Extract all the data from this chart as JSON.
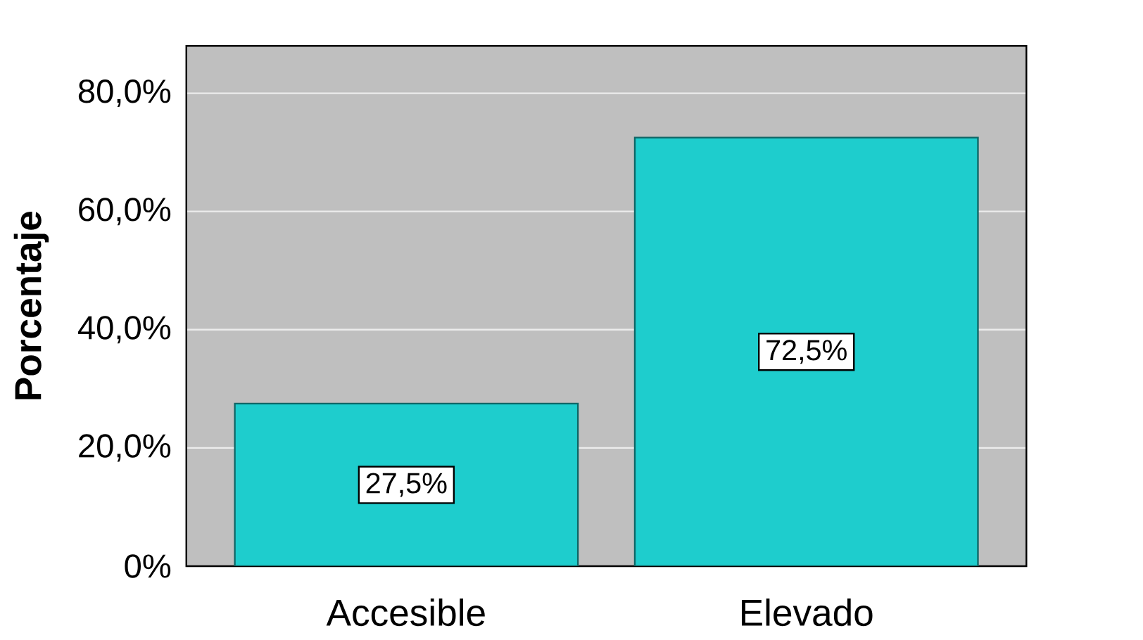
{
  "chart_data": {
    "type": "bar",
    "ylabel": "Porcentaje",
    "categories": [
      "Accesible",
      "Elevado"
    ],
    "values": [
      27.5,
      72.5
    ],
    "color": "#1ecdcd",
    "value_labels": [
      "27,5%",
      "72,5%"
    ],
    "ylim": [
      0,
      88
    ],
    "yticks": [
      {
        "value": 0,
        "label": "0%"
      },
      {
        "value": 20,
        "label": "20,0%"
      },
      {
        "value": 40,
        "label": "40,0%"
      },
      {
        "value": 60,
        "label": "60,0%"
      },
      {
        "value": 80,
        "label": "80,0%"
      }
    ],
    "grid": "y"
  }
}
